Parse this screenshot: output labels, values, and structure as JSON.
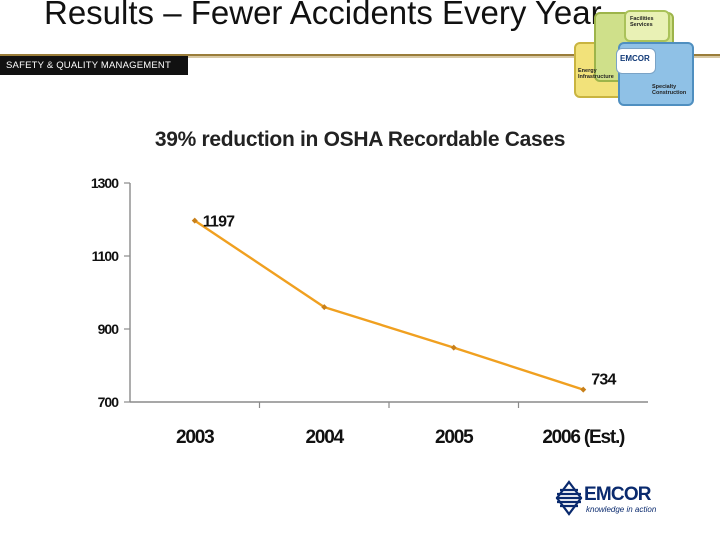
{
  "slide": {
    "title": "Results – Fewer Accidents Every Year",
    "section_tag": "SAFETY & QUALITY MANAGEMENT"
  },
  "logo_cluster": {
    "facilities_label": "Facilities Services",
    "center_label": "EMCOR",
    "energy_label": "Energy Infrastructure",
    "specialty_label": "Specialty Construction"
  },
  "brand": {
    "name": "EMCOR",
    "tagline": "knowledge in action"
  },
  "chart_data": {
    "type": "line",
    "title": "39% reduction in OSHA Recordable Cases",
    "categories": [
      "2003",
      "2004",
      "2005",
      "2006 (Est.)"
    ],
    "series": [
      {
        "values": [
          1197,
          960,
          849,
          734
        ]
      }
    ],
    "data_labels": [
      "1197",
      "",
      "",
      "734"
    ],
    "ylim": [
      700,
      1300
    ],
    "yticks": [
      1300,
      1100,
      900,
      700
    ],
    "xlabel": "",
    "ylabel": "",
    "grid": false,
    "legend": "none",
    "line_color": "#f0a020",
    "marker_color": "#c8801a"
  }
}
